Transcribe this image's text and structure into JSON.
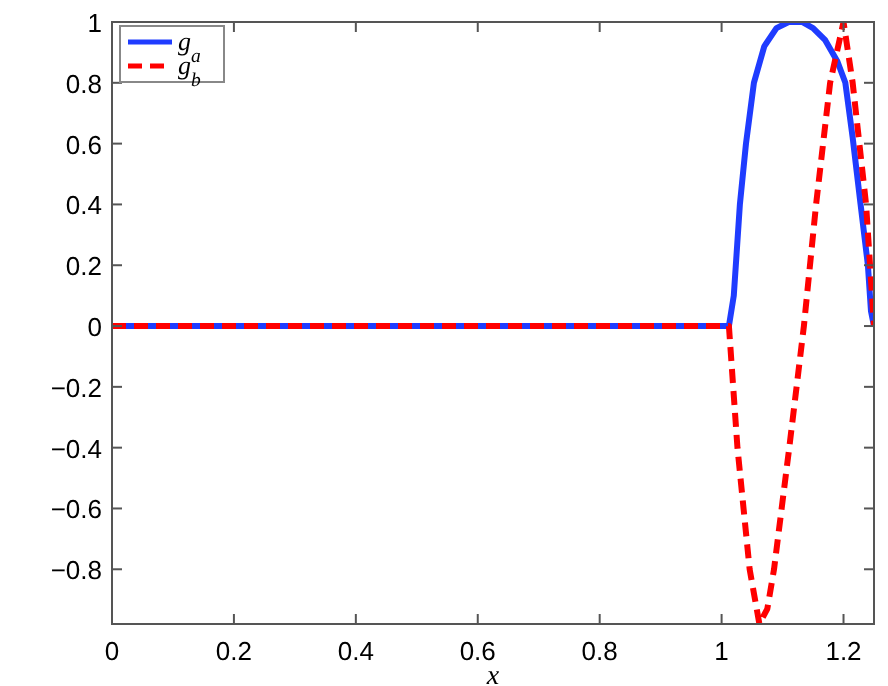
{
  "chart_data": {
    "type": "line",
    "xlabel": "x",
    "xlim": [
      0,
      1.25
    ],
    "xticks": [
      0,
      0.2,
      0.4,
      0.6,
      0.8,
      1,
      1.2
    ],
    "ylim": [
      -0.98,
      1
    ],
    "yticks": [
      {
        "value": -0.8,
        "label": "−0.8"
      },
      {
        "value": -0.6,
        "label": "−0.6"
      },
      {
        "value": -0.4,
        "label": "−0.4"
      },
      {
        "value": -0.2,
        "label": "−0.2"
      },
      0,
      0.2,
      0.4,
      0.6,
      0.8,
      1
    ],
    "grid": false,
    "legend": "top left",
    "series": [
      {
        "name": "g$_{a}$",
        "color": "#1f3cff",
        "line_style": "solid",
        "x": [
          0,
          1.012,
          1.02,
          1.03,
          1.04,
          1.053,
          1.07,
          1.09,
          1.11,
          1.132,
          1.15,
          1.17,
          1.19,
          1.203,
          1.215,
          1.228,
          1.24,
          1.245,
          1.25
        ],
        "values": [
          0,
          0,
          0.1,
          0.4,
          0.6,
          0.8,
          0.92,
          0.98,
          1,
          1,
          0.98,
          0.94,
          0.87,
          0.8,
          0.62,
          0.4,
          0.2,
          0.05,
          0
        ]
      },
      {
        "name": "g$_{b}$",
        "color": "#ff0000",
        "line_style": "dashed",
        "x": [
          0,
          1.012,
          1.026,
          1.046,
          1.062,
          1.075,
          1.086,
          1.111,
          1.135,
          1.155,
          1.178,
          1.2,
          1.215,
          1.237,
          1.25
        ],
        "values": [
          0,
          0,
          -0.4,
          -0.8,
          -0.98,
          -0.93,
          -0.8,
          -0.4,
          0,
          0.4,
          0.8,
          1,
          0.8,
          0.4,
          0
        ]
      }
    ]
  }
}
